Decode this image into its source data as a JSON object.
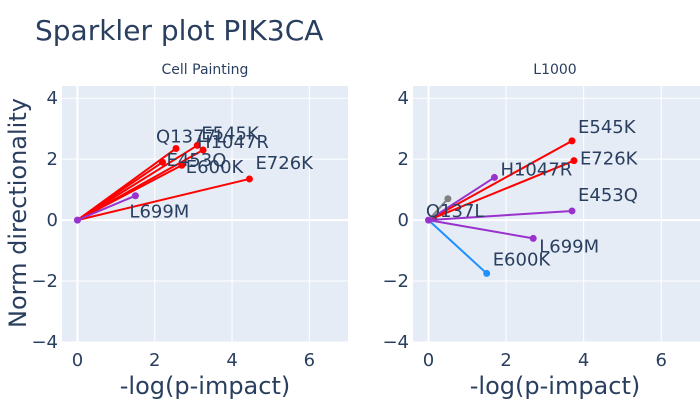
{
  "title": "Sparkler plot PIK3CA",
  "chart_data": [
    {
      "type": "scatter",
      "subtitle": "Cell Painting",
      "xlabel": "-log(p-impact)",
      "ylabel": "Norm directionality",
      "xlim": [
        -0.4,
        7
      ],
      "ylim": [
        -4,
        4.4
      ],
      "xticks": [
        0,
        2,
        4,
        6
      ],
      "yticks": [
        -4,
        -2,
        0,
        2,
        4
      ],
      "tick_labels_x": [
        "0",
        "2",
        "4",
        "6"
      ],
      "tick_labels_y": [
        "−4",
        "−2",
        "0",
        "2",
        "4"
      ],
      "grid": true,
      "origin": [
        0,
        0
      ],
      "points": [
        {
          "label": "Q1377L",
          "x": 2.55,
          "y": 2.35,
          "color": "#ff0000"
        },
        {
          "label": "E545K",
          "x": 3.1,
          "y": 2.45,
          "color": "#ff0000"
        },
        {
          "label": "H1047R",
          "x": 3.25,
          "y": 2.3,
          "color": "#ff0000"
        },
        {
          "label": "E453Q",
          "x": 2.2,
          "y": 1.9,
          "color": "#ff0000"
        },
        {
          "label": "E600K",
          "x": 2.7,
          "y": 1.8,
          "color": "#ff0000"
        },
        {
          "label": "E726K",
          "x": 4.45,
          "y": 1.35,
          "color": "#ff0000"
        },
        {
          "label": "L699M",
          "x": 1.5,
          "y": 0.8,
          "color": "#9932cc"
        }
      ]
    },
    {
      "type": "scatter",
      "subtitle": "L1000",
      "xlabel": "-log(p-impact)",
      "ylabel": "",
      "xlim": [
        -0.4,
        7
      ],
      "ylim": [
        -4,
        4.4
      ],
      "xticks": [
        0,
        2,
        4,
        6
      ],
      "yticks": [
        -4,
        -2,
        0,
        2,
        4
      ],
      "tick_labels_x": [
        "0",
        "2",
        "4",
        "6"
      ],
      "tick_labels_y": [
        "−4",
        "−2",
        "0",
        "2",
        "4"
      ],
      "grid": true,
      "origin": [
        0,
        0
      ],
      "points": [
        {
          "label": "E545K",
          "x": 3.7,
          "y": 2.6,
          "color": "#ff0000"
        },
        {
          "label": "E726K",
          "x": 3.75,
          "y": 1.95,
          "color": "#ff0000"
        },
        {
          "label": "H1047R",
          "x": 1.7,
          "y": 1.4,
          "color": "#9932cc"
        },
        {
          "label": "Q137L",
          "x": 0.5,
          "y": 0.7,
          "color": "#808080"
        },
        {
          "label": "E453Q",
          "x": 3.7,
          "y": 0.3,
          "color": "#9932cc"
        },
        {
          "label": "L699M",
          "x": 2.7,
          "y": -0.6,
          "color": "#9932cc"
        },
        {
          "label": "E600K",
          "x": 1.5,
          "y": -1.75,
          "color": "#1e90ff"
        }
      ]
    }
  ],
  "colors": {
    "plot_bg": "#e5ecf6",
    "grid": "#ffffff",
    "text": "#2a3f5f",
    "origin": "#9932cc"
  }
}
